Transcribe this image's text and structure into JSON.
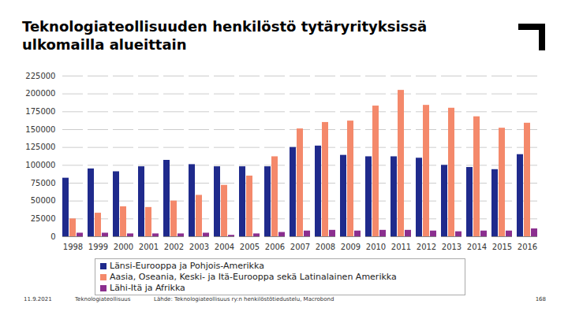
{
  "chart_data": {
    "type": "bar",
    "title": "Teknologiateollisuuden henkilöstö tytäryrityksissä ulkomailla alueittain",
    "categories": [
      "1998",
      "1999",
      "2000",
      "2001",
      "2002",
      "2003",
      "2004",
      "2005",
      "2006",
      "2007",
      "2008",
      "2009",
      "2010",
      "2011",
      "2012",
      "2013",
      "2014",
      "2015",
      "2016"
    ],
    "series": [
      {
        "name": "Länsi-Eurooppa ja Pohjois-Amerikka",
        "color": "#1f2a8c",
        "values": [
          82000,
          95000,
          91000,
          98000,
          107000,
          101000,
          98000,
          98000,
          98000,
          125000,
          127000,
          114000,
          112000,
          112000,
          110000,
          100000,
          97000,
          94000,
          115000
        ]
      },
      {
        "name": "Aasia, Oseania, Keski- ja Itä-Eurooppa sekä Latinalainen Amerikka",
        "color": "#f4896b",
        "values": [
          25000,
          33000,
          42000,
          41000,
          50000,
          58000,
          72000,
          85000,
          112000,
          151000,
          160000,
          162000,
          183000,
          205000,
          184000,
          180000,
          168000,
          152000,
          159000
        ]
      },
      {
        "name": "Lähi-Itä ja Afrikka",
        "color": "#8b2f8f",
        "values": [
          5000,
          5000,
          4000,
          4000,
          4000,
          5000,
          2000,
          4000,
          6000,
          8000,
          9000,
          8000,
          9000,
          9000,
          8000,
          7000,
          8000,
          8000,
          11000
        ]
      }
    ],
    "ylim": [
      0,
      225000
    ],
    "yticks": [
      0,
      25000,
      50000,
      75000,
      100000,
      125000,
      150000,
      175000,
      200000,
      225000
    ],
    "grid": true,
    "legend": "bottom",
    "annotations": [
      "11.9.2021",
      "Teknologiateollisuus",
      "Lähde: Teknologiateollisuus ry:n henkilöstötiedustelu, Macrobond",
      "168"
    ]
  }
}
